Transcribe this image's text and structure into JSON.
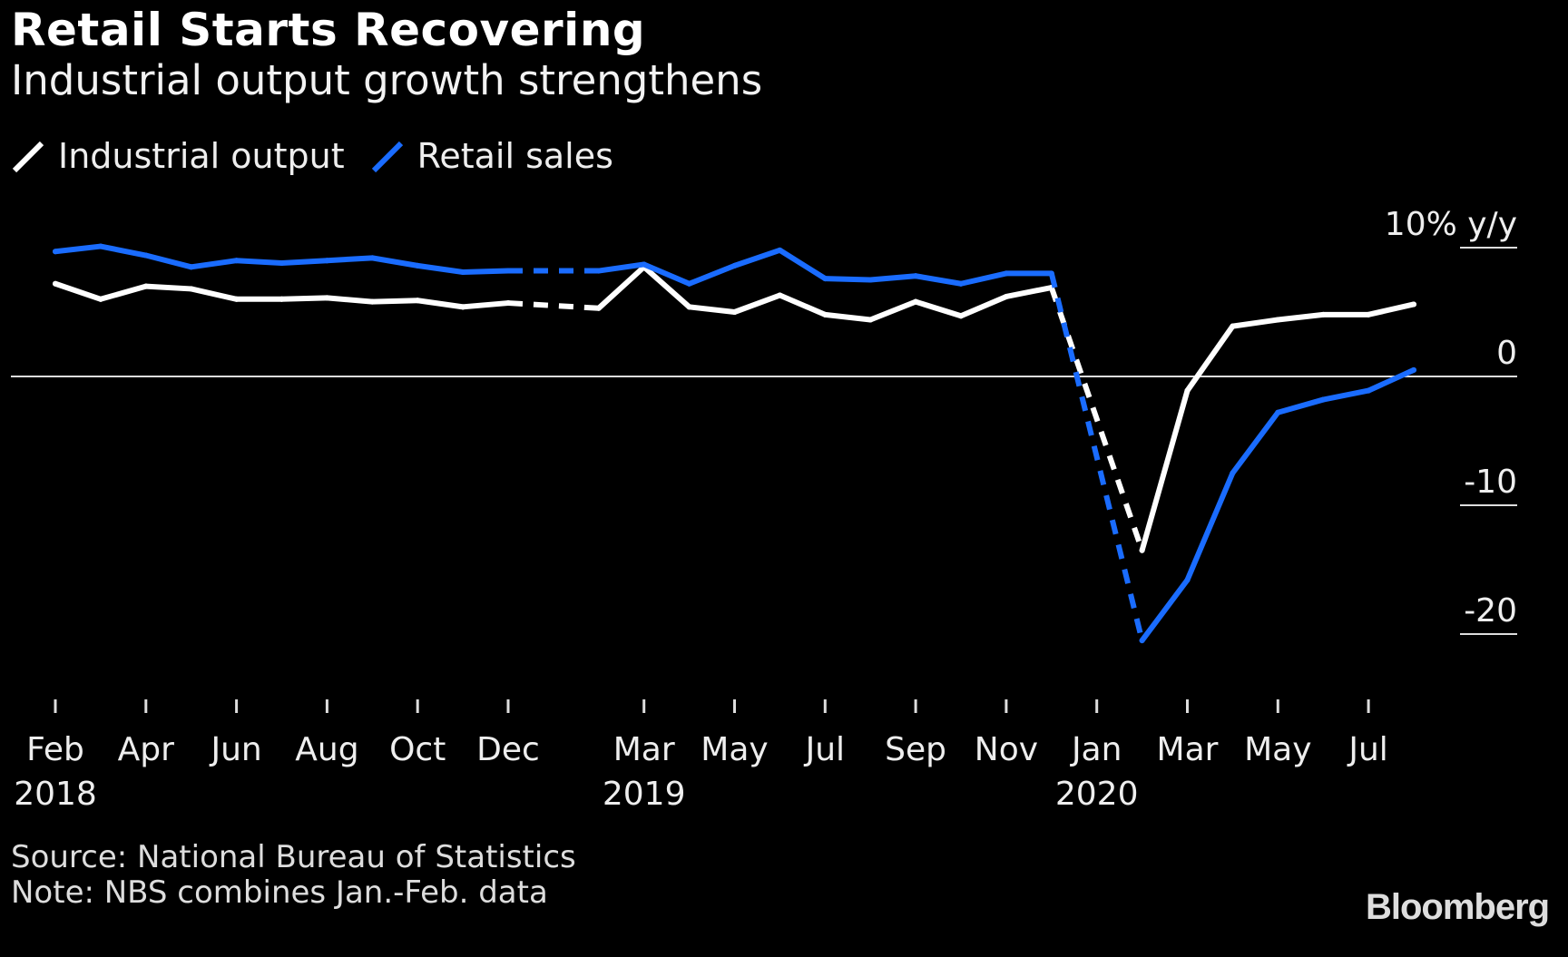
{
  "title": "Retail Starts Recovering",
  "subtitle": "Industrial output growth strengthens",
  "source": "Source: National Bureau of Statistics",
  "note": "Note: NBS combines Jan.-Feb. data",
  "logo": "Bloomberg",
  "chart_data": {
    "type": "line",
    "title": "Retail Starts Recovering",
    "subtitle": "Industrial output growth strengthens",
    "ylabel": "10% y/y",
    "ylim": [
      -23,
      12
    ],
    "y_ticks": [
      {
        "value": 10,
        "label": "10% y/y"
      },
      {
        "value": 0,
        "label": "0"
      },
      {
        "value": -10,
        "label": "-10"
      },
      {
        "value": -20,
        "label": "-20"
      }
    ],
    "x_ticks": [
      {
        "date": "2018-02",
        "label": "Feb",
        "year": "2018"
      },
      {
        "date": "2018-04",
        "label": "Apr",
        "year": ""
      },
      {
        "date": "2018-06",
        "label": "Jun",
        "year": ""
      },
      {
        "date": "2018-08",
        "label": "Aug",
        "year": ""
      },
      {
        "date": "2018-10",
        "label": "Oct",
        "year": ""
      },
      {
        "date": "2018-12",
        "label": "Dec",
        "year": ""
      },
      {
        "date": "2019-03",
        "label": "Mar",
        "year": "2019"
      },
      {
        "date": "2019-05",
        "label": "May",
        "year": ""
      },
      {
        "date": "2019-07",
        "label": "Jul",
        "year": ""
      },
      {
        "date": "2019-09",
        "label": "Sep",
        "year": ""
      },
      {
        "date": "2019-11",
        "label": "Nov",
        "year": ""
      },
      {
        "date": "2020-01",
        "label": "Jan",
        "year": "2020"
      },
      {
        "date": "2020-03",
        "label": "Mar",
        "year": ""
      },
      {
        "date": "2020-05",
        "label": "May",
        "year": ""
      },
      {
        "date": "2020-07",
        "label": "Jul",
        "year": ""
      }
    ],
    "legend_position": "top-left",
    "x": [
      "2018-02",
      "2018-03",
      "2018-04",
      "2018-05",
      "2018-06",
      "2018-07",
      "2018-08",
      "2018-09",
      "2018-10",
      "2018-11",
      "2018-12",
      "2019-02",
      "2019-03",
      "2019-04",
      "2019-05",
      "2019-06",
      "2019-07",
      "2019-08",
      "2019-09",
      "2019-10",
      "2019-11",
      "2019-12",
      "2020-02",
      "2020-03",
      "2020-04",
      "2020-05",
      "2020-06",
      "2020-07",
      "2020-08"
    ],
    "series": [
      {
        "name": "Industrial output",
        "color": "#ffffff",
        "values": [
          7.2,
          6.0,
          7.0,
          6.8,
          6.0,
          6.0,
          6.1,
          5.8,
          5.9,
          5.4,
          5.7,
          5.3,
          8.5,
          5.4,
          5.0,
          6.3,
          4.8,
          4.4,
          5.8,
          4.7,
          6.2,
          6.9,
          -13.5,
          -1.1,
          3.9,
          4.4,
          4.8,
          4.8,
          5.6
        ]
      },
      {
        "name": "Retail sales",
        "color": "#1a6cff",
        "values": [
          9.7,
          10.1,
          9.4,
          8.5,
          9.0,
          8.8,
          9.0,
          9.2,
          8.6,
          8.1,
          8.2,
          8.2,
          8.7,
          7.2,
          8.6,
          9.8,
          7.6,
          7.5,
          7.8,
          7.2,
          8.0,
          8.0,
          -20.5,
          -15.8,
          -7.5,
          -2.8,
          -1.8,
          -1.1,
          0.5
        ]
      }
    ],
    "dashed_gaps": [
      "2019-01",
      "2020-01"
    ],
    "grid": false
  }
}
